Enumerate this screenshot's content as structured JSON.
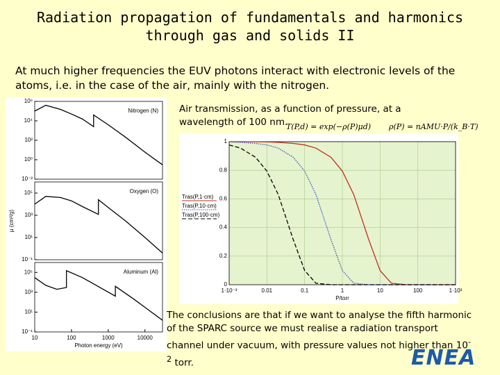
{
  "title": "Radiation propagation of fundamentals and harmonics through gas and solids II",
  "intro": "At much higher frequencies the EUV photons interact with electronic levels of the atoms, i.e. in the case of the air, mainly with the nitrogen.",
  "caption": "Air transmission, as a function of pressure, at a wavelength of 100 nm.",
  "formulas": [
    "T(P,d) = exp(−ρ(P)μd)",
    "ρ(P) = nAMU·P/(k_B·T)"
  ],
  "conclusion": {
    "text": "The conclusions are that if we want to analyse the fifth harmonic of the SPARC source we must realise a radiation transport channel under vacuum, with pressure values not higher than 10",
    "exponent": "-2",
    "after": " torr."
  },
  "logo": "ENEA",
  "chart_data": [
    {
      "type": "line",
      "title": "Nitrogen (N)",
      "color": "#000000",
      "log_x": true,
      "log_y": true,
      "x": [
        10,
        20,
        50,
        100,
        200,
        400,
        400,
        1000,
        3000,
        10000,
        30000
      ],
      "values": [
        100000,
        400000,
        150000,
        50000,
        15000,
        2500,
        40000,
        4000,
        200,
        6,
        0.3
      ],
      "xlim": [
        10,
        30000
      ],
      "ylim": [
        0.01,
        1000000
      ],
      "yticks": [
        {
          "value": 0.01,
          "label": "10⁻²"
        },
        {
          "value": 1,
          "label": "10⁰"
        },
        {
          "value": 100,
          "label": "10²"
        },
        {
          "value": 10000,
          "label": "10⁴"
        },
        {
          "value": 1000000,
          "label": "10⁶"
        }
      ]
    },
    {
      "type": "line",
      "title": "Oxygen (O)",
      "color": "#000000",
      "log_x": true,
      "log_y": true,
      "y_label": "μ (cm²/g)",
      "x": [
        10,
        20,
        50,
        100,
        200,
        540,
        540,
        1000,
        3000,
        10000,
        30000
      ],
      "values": [
        10000,
        50000,
        40000,
        20000,
        6000,
        1200,
        25000,
        5000,
        300,
        10,
        0.4
      ],
      "xlim": [
        10,
        30000
      ],
      "ylim": [
        0.1,
        1000000
      ],
      "yticks": [
        {
          "value": 0.1,
          "label": "10⁻¹"
        },
        {
          "value": 10,
          "label": "10¹"
        },
        {
          "value": 1000,
          "label": "10³"
        },
        {
          "value": 100000,
          "label": "10⁵"
        }
      ]
    },
    {
      "type": "line",
      "title": "Aluminum (Al)",
      "color": "#000000",
      "log_x": true,
      "log_y": true,
      "x_label": "Photon energy (eV)",
      "x": [
        10,
        20,
        40,
        73,
        73,
        200,
        1560,
        1560,
        5000,
        10000,
        30000
      ],
      "values": [
        30000,
        5000,
        2000,
        3000,
        150000,
        30000,
        400,
        4000,
        200,
        30,
        1.5
      ],
      "xlim": [
        10,
        30000
      ],
      "ylim": [
        0.1,
        1000000
      ],
      "xticks": [
        10,
        100,
        1000,
        10000
      ],
      "yticks": [
        {
          "value": 0.1,
          "label": "10⁻¹"
        },
        {
          "value": 10,
          "label": "10¹"
        },
        {
          "value": 1000,
          "label": "10³"
        },
        {
          "value": 100000,
          "label": "10⁵"
        }
      ]
    },
    {
      "type": "line",
      "log_x": true,
      "grid": true,
      "legend": "left",
      "x_label": "P/torr",
      "x": [
        0.001,
        0.002,
        0.005,
        0.01,
        0.02,
        0.05,
        0.1,
        0.2,
        0.5,
        1,
        2,
        5,
        10,
        20,
        50,
        100,
        1000
      ],
      "series": [
        {
          "name": "Tras(P,1·cm)",
          "color": "#c0301a",
          "style": "solid",
          "values": [
            1,
            1,
            0.999,
            0.998,
            0.995,
            0.988,
            0.977,
            0.955,
            0.891,
            0.794,
            0.63,
            0.315,
            0.099,
            0.01,
            0,
            0,
            0
          ]
        },
        {
          "name": "Tras(P,10·cm)",
          "color": "#3050c0",
          "style": "dotted",
          "values": [
            0.998,
            0.995,
            0.988,
            0.977,
            0.955,
            0.891,
            0.794,
            0.63,
            0.315,
            0.099,
            0.01,
            0,
            0,
            0,
            0,
            0,
            0
          ]
        },
        {
          "name": "Tras(P,100·cm)",
          "color": "#000000",
          "style": "dashed",
          "values": [
            0.977,
            0.955,
            0.891,
            0.794,
            0.63,
            0.315,
            0.099,
            0.01,
            0,
            0,
            0,
            0,
            0,
            0,
            0,
            0,
            0
          ]
        }
      ],
      "xlim": [
        0.001,
        1000
      ],
      "ylim": [
        0,
        1
      ],
      "xticks": [
        {
          "value": 0.001,
          "label": "1·10⁻³"
        },
        0.01,
        0.1,
        1,
        10,
        100,
        {
          "value": 1000,
          "label": "1·10³"
        }
      ],
      "yticks": [
        0,
        0.2,
        0.4,
        0.6,
        0.8,
        1
      ]
    }
  ]
}
